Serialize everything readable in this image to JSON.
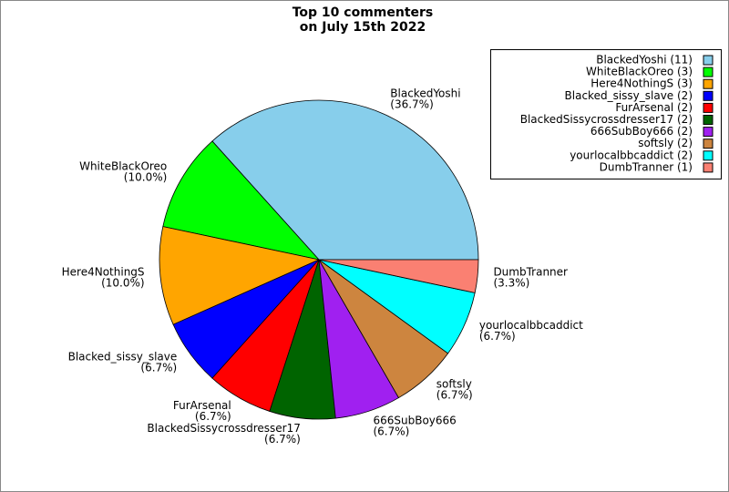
{
  "chart_data": {
    "type": "pie",
    "title": [
      "Top 10 commenters",
      "on July 15th 2022"
    ],
    "categories": [
      "BlackedYoshi",
      "WhiteBlackOreo",
      "Here4NothingS",
      "Blacked_sissy_slave",
      "FurArsenal",
      "BlackedSissycrossdresser17",
      "666SubBoy666",
      "softsly",
      "yourlocalbbcaddict",
      "DumbTranner"
    ],
    "values": [
      11,
      3,
      3,
      2,
      2,
      2,
      2,
      2,
      2,
      1
    ],
    "value_labels": [
      "(36.7%)",
      "(10.0%)",
      "(10.0%)",
      "(6.7%)",
      "(6.7%)",
      "(6.7%)",
      "(6.7%)",
      "(6.7%)",
      "(6.7%)",
      "(3.3%)"
    ],
    "legend_labels": [
      "BlackedYoshi (11)",
      "WhiteBlackOreo (3)",
      "Here4NothingS (3)",
      "Blacked_sissy_slave (2)",
      "FurArsenal (2)",
      "BlackedSissycrossdresser17 (2)",
      "666SubBoy666 (2)",
      "softsly (2)",
      "yourlocalbbcaddict (2)",
      "DumbTranner (1)"
    ],
    "colors": [
      "#87ceeb",
      "#00ff00",
      "#ffa500",
      "#0000ff",
      "#ff0000",
      "#006400",
      "#a020f0",
      "#cd853f",
      "#00ffff",
      "#fa8072"
    ],
    "legend": "upper right"
  }
}
